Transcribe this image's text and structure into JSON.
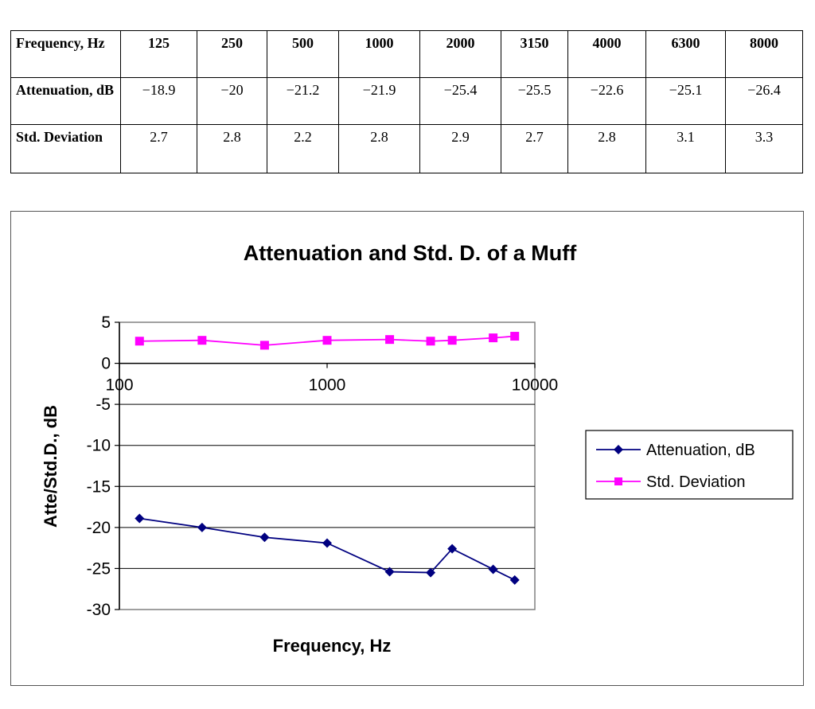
{
  "table": {
    "header": [
      "Frequency, Hz",
      "125",
      "250",
      "500",
      "1000",
      "2000",
      "3150",
      "4000",
      "6300",
      "8000"
    ],
    "rows": [
      {
        "label": "Attenuation, dB",
        "values": [
          "−18.9",
          "−20",
          "−21.2",
          "−21.9",
          "−25.4",
          "−25.5",
          "−22.6",
          "−25.1",
          "−26.4"
        ]
      },
      {
        "label": "Std. Deviation",
        "values": [
          "2.7",
          "2.8",
          "2.2",
          "2.8",
          "2.9",
          "2.7",
          "2.8",
          "3.1",
          "3.3"
        ]
      }
    ]
  },
  "chart_data": {
    "type": "line",
    "title": "Attenuation and Std. D. of a Muff",
    "xlabel": "Frequency, Hz",
    "ylabel": "Atte/Std.D., dB",
    "xscale": "log",
    "xlim": [
      100,
      10000
    ],
    "ylim": [
      -30,
      5
    ],
    "x_ticks": [
      100,
      1000,
      10000
    ],
    "x_tick_labels": [
      "100",
      "1000",
      "10000"
    ],
    "y_ticks": [
      5,
      0,
      -5,
      -10,
      -15,
      -20,
      -25,
      -30
    ],
    "y_tick_labels": [
      "5",
      "0",
      "-5",
      "-10",
      "-15",
      "-20",
      "-25",
      "-30"
    ],
    "grid": "horizontal",
    "legend_position": "right",
    "x": [
      125,
      250,
      500,
      1000,
      2000,
      3150,
      4000,
      6300,
      8000
    ],
    "series": [
      {
        "name": "Attenuation, dB",
        "color": "#000080",
        "marker": "diamond",
        "values": [
          -18.9,
          -20,
          -21.2,
          -21.9,
          -25.4,
          -25.5,
          -22.6,
          -25.1,
          -26.4
        ]
      },
      {
        "name": "Std. Deviation",
        "color": "#ff00ff",
        "marker": "square",
        "values": [
          2.7,
          2.8,
          2.2,
          2.8,
          2.9,
          2.7,
          2.8,
          3.1,
          3.3
        ]
      }
    ]
  }
}
